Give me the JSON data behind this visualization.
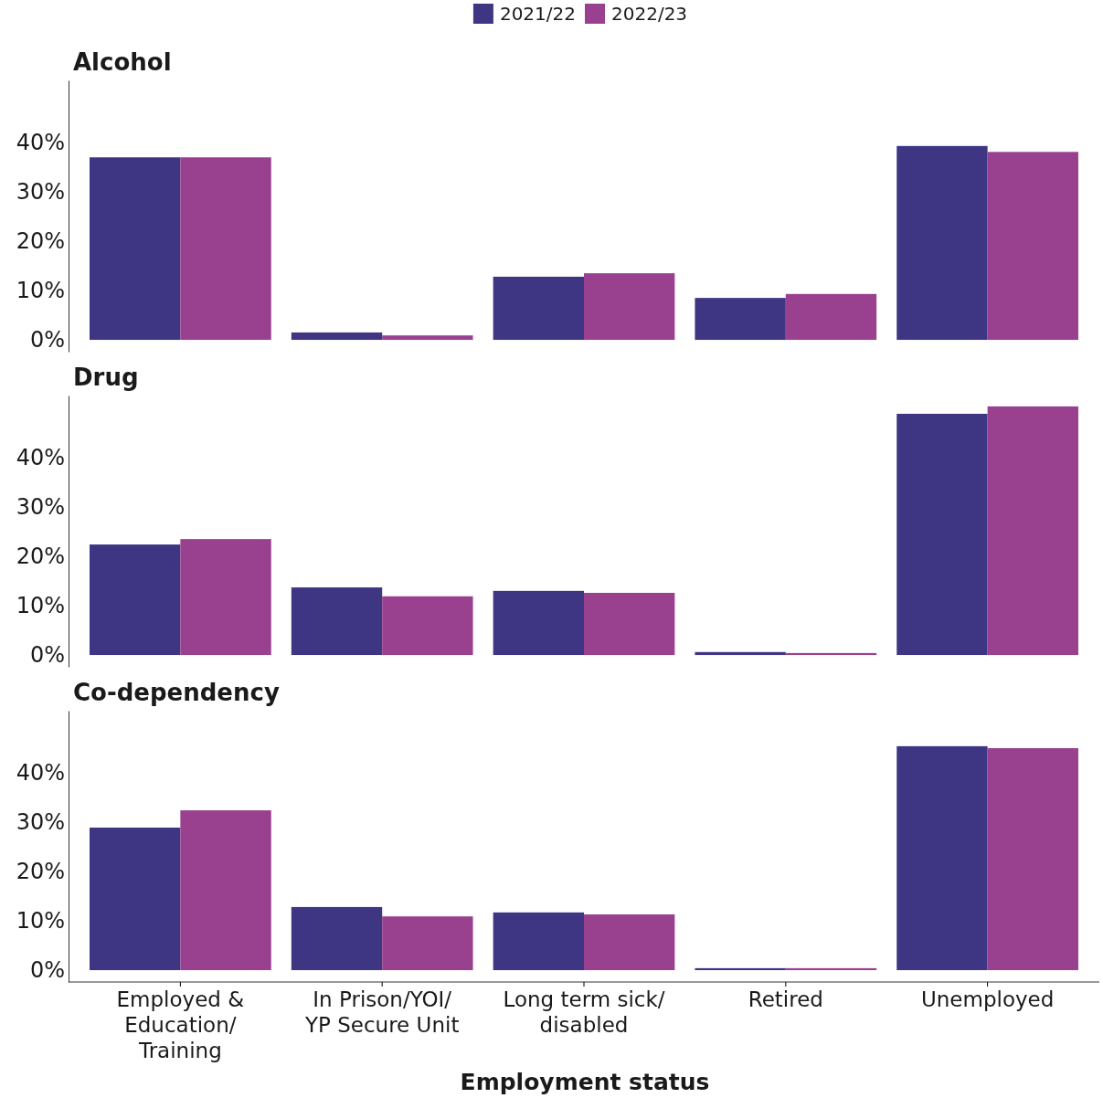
{
  "chart_data": [
    {
      "type": "bar",
      "title": "Alcohol",
      "categories": [
        null,
        null,
        null,
        null,
        null
      ],
      "series": [
        {
          "name": "2021/22",
          "color": "#3f3683",
          "values": [
            37.0,
            1.5,
            12.8,
            8.5,
            39.3
          ]
        },
        {
          "name": "2022/23",
          "color": "#99418f",
          "values": [
            37.0,
            0.9,
            13.5,
            9.3,
            38.1
          ]
        }
      ],
      "ylim": [
        -2.4,
        52.6
      ],
      "yticks": [
        {
          "value": 0,
          "label": "0%"
        },
        {
          "value": 10,
          "label": "10%"
        },
        {
          "value": 20,
          "label": "20%"
        },
        {
          "value": 30,
          "label": "30%"
        },
        {
          "value": 40,
          "label": "40%"
        }
      ],
      "grid": false,
      "legend": "top",
      "tick_labels": "y"
    },
    {
      "type": "bar",
      "title": "Drug",
      "categories": [
        null,
        null,
        null,
        null,
        null
      ],
      "series": [
        {
          "name": "2021/22",
          "color": "#3f3683",
          "values": [
            22.4,
            13.7,
            13.0,
            0.6,
            48.9
          ]
        },
        {
          "name": "2022/23",
          "color": "#99418f",
          "values": [
            23.5,
            11.9,
            12.6,
            0.4,
            50.4
          ]
        }
      ],
      "ylim": [
        -2.4,
        52.6
      ],
      "yticks": [
        {
          "value": 0,
          "label": "0%"
        },
        {
          "value": 10,
          "label": "10%"
        },
        {
          "value": 20,
          "label": "20%"
        },
        {
          "value": 30,
          "label": "30%"
        },
        {
          "value": 40,
          "label": "40%"
        }
      ],
      "grid": false,
      "legend": false,
      "tick_labels": "y"
    },
    {
      "type": "bar",
      "title": "Co-dependency",
      "xlabel": "Employment status",
      "categories": [
        "Employed & Education/ Training",
        "In Prison/YOI/ YP Secure Unit",
        "Long term sick/ disabled",
        "Retired",
        "Unemployed"
      ],
      "series": [
        {
          "name": "2021/22",
          "color": "#3f3683",
          "values": [
            28.9,
            12.8,
            11.7,
            0.4,
            45.4
          ]
        },
        {
          "name": "2022/23",
          "color": "#99418f",
          "values": [
            32.4,
            10.9,
            11.3,
            0.4,
            45.0
          ]
        }
      ],
      "ylim": [
        -2.4,
        52.6
      ],
      "yticks": [
        {
          "value": 0,
          "label": "0%"
        },
        {
          "value": 10,
          "label": "10%"
        },
        {
          "value": 20,
          "label": "20%"
        },
        {
          "value": 30,
          "label": "30%"
        },
        {
          "value": 40,
          "label": "40%"
        }
      ],
      "grid": false,
      "legend": false
    }
  ]
}
